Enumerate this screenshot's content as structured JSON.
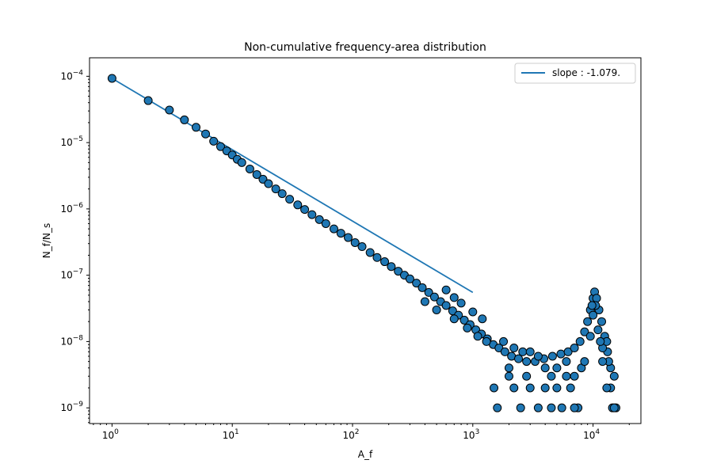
{
  "chart_data": {
    "type": "scatter",
    "title": "Non-cumulative frequency-area distribution",
    "xlabel": "A_f",
    "ylabel": "N_f/N_s",
    "xscale": "log",
    "yscale": "log",
    "xlim": [
      0.65,
      25000
    ],
    "ylim": [
      5.8e-10,
      0.00019
    ],
    "x_ticks": [
      {
        "base": "10",
        "exp": "0",
        "value": 1
      },
      {
        "base": "10",
        "exp": "1",
        "value": 10
      },
      {
        "base": "10",
        "exp": "2",
        "value": 100
      },
      {
        "base": "10",
        "exp": "3",
        "value": 1000
      },
      {
        "base": "10",
        "exp": "4",
        "value": 10000
      }
    ],
    "y_ticks": [
      {
        "base": "10",
        "exp": "−9",
        "value": 1e-09
      },
      {
        "base": "10",
        "exp": "−8",
        "value": 1e-08
      },
      {
        "base": "10",
        "exp": "−7",
        "value": 1e-07
      },
      {
        "base": "10",
        "exp": "−6",
        "value": 1e-06
      },
      {
        "base": "10",
        "exp": "−5",
        "value": 1e-05
      },
      {
        "base": "10",
        "exp": "−4",
        "value": 0.0001
      }
    ],
    "legend": {
      "position": "top-right",
      "entries": [
        {
          "label": "slope : -1.079.",
          "color": "#1f77b4"
        }
      ]
    },
    "fit_line": {
      "x": [
        1,
        1000
      ],
      "y": [
        9.3e-05,
        5.5e-08
      ],
      "slope": -1.079,
      "color": "#1f77b4"
    },
    "series": [
      {
        "marker_color": "#1f77b4",
        "marker_edge": "#000000",
        "points": [
          [
            1,
            9.3e-05
          ],
          [
            2,
            4.3e-05
          ],
          [
            3,
            3.1e-05
          ],
          [
            4,
            2.2e-05
          ],
          [
            5,
            1.7e-05
          ],
          [
            6,
            1.35e-05
          ],
          [
            7,
            1.05e-05
          ],
          [
            8,
            8.7e-06
          ],
          [
            9,
            7.5e-06
          ],
          [
            10,
            6.5e-06
          ],
          [
            11,
            5.6e-06
          ],
          [
            12,
            5e-06
          ],
          [
            14,
            4e-06
          ],
          [
            16,
            3.3e-06
          ],
          [
            18,
            2.8e-06
          ],
          [
            20,
            2.4e-06
          ],
          [
            23,
            2e-06
          ],
          [
            26,
            1.7e-06
          ],
          [
            30,
            1.4e-06
          ],
          [
            35,
            1.15e-06
          ],
          [
            40,
            9.8e-07
          ],
          [
            46,
            8.2e-07
          ],
          [
            53,
            6.9e-07
          ],
          [
            60,
            6e-07
          ],
          [
            70,
            5e-07
          ],
          [
            80,
            4.3e-07
          ],
          [
            92,
            3.7e-07
          ],
          [
            105,
            3.1e-07
          ],
          [
            120,
            2.7e-07
          ],
          [
            140,
            2.2e-07
          ],
          [
            160,
            1.85e-07
          ],
          [
            185,
            1.6e-07
          ],
          [
            210,
            1.35e-07
          ],
          [
            240,
            1.15e-07
          ],
          [
            270,
            1e-07
          ],
          [
            300,
            8.8e-08
          ],
          [
            340,
            7.6e-08
          ],
          [
            380,
            6.5e-08
          ],
          [
            430,
            5.5e-08
          ],
          [
            480,
            4.7e-08
          ],
          [
            540,
            4e-08
          ],
          [
            600,
            3.5e-08
          ],
          [
            680,
            2.9e-08
          ],
          [
            760,
            2.5e-08
          ],
          [
            850,
            2.1e-08
          ],
          [
            950,
            1.8e-08
          ],
          [
            1060,
            1.5e-08
          ],
          [
            1180,
            1.3e-08
          ],
          [
            1320,
            1.1e-08
          ],
          [
            1480,
            9e-09
          ],
          [
            1650,
            8e-09
          ],
          [
            1850,
            7e-09
          ],
          [
            2100,
            6e-09
          ],
          [
            2400,
            5.5e-09
          ],
          [
            2800,
            5e-09
          ],
          [
            3300,
            5e-09
          ],
          [
            3900,
            5.5e-09
          ],
          [
            4600,
            6e-09
          ],
          [
            5400,
            6.5e-09
          ],
          [
            6200,
            7e-09
          ],
          [
            7000,
            8e-09
          ],
          [
            7800,
            1e-08
          ],
          [
            8500,
            1.4e-08
          ],
          [
            9000,
            2e-08
          ],
          [
            9500,
            3e-08
          ],
          [
            10000,
            4.5e-08
          ],
          [
            10300,
            5.6e-08
          ],
          [
            10700,
            4.5e-08
          ],
          [
            11200,
            3e-08
          ],
          [
            11800,
            2e-08
          ],
          [
            12500,
            1.2e-08
          ],
          [
            13200,
            7e-09
          ],
          [
            14000,
            4e-09
          ],
          [
            15000,
            3e-09
          ],
          [
            600,
            6e-08
          ],
          [
            700,
            4.6e-08
          ],
          [
            800,
            3.8e-08
          ],
          [
            1000,
            2.8e-08
          ],
          [
            1200,
            2.2e-08
          ],
          [
            400,
            4e-08
          ],
          [
            500,
            3e-08
          ],
          [
            700,
            2.2e-08
          ],
          [
            900,
            1.6e-08
          ],
          [
            1100,
            1.2e-08
          ],
          [
            1300,
            1e-08
          ],
          [
            1500,
            2e-09
          ],
          [
            1600,
            1e-09
          ],
          [
            2000,
            3e-09
          ],
          [
            2000,
            4e-09
          ],
          [
            1800,
            1e-08
          ],
          [
            2200,
            8e-09
          ],
          [
            2600,
            7e-09
          ],
          [
            3000,
            7e-09
          ],
          [
            3500,
            6e-09
          ],
          [
            4000,
            4e-09
          ],
          [
            4500,
            3e-09
          ],
          [
            5000,
            2e-09
          ],
          [
            5500,
            1e-09
          ],
          [
            6000,
            3e-09
          ],
          [
            6500,
            2e-09
          ],
          [
            7000,
            3e-09
          ],
          [
            7500,
            1e-09
          ],
          [
            8000,
            4e-09
          ],
          [
            8500,
            5e-09
          ],
          [
            2500,
            1e-09
          ],
          [
            3000,
            2e-09
          ],
          [
            3500,
            1e-09
          ],
          [
            4000,
            2e-09
          ],
          [
            4500,
            1e-09
          ],
          [
            5000,
            4e-09
          ],
          [
            6000,
            5e-09
          ],
          [
            7000,
            1e-09
          ],
          [
            2200,
            2e-09
          ],
          [
            2800,
            3e-09
          ],
          [
            9500,
            1.2e-08
          ],
          [
            10000,
            2.5e-08
          ],
          [
            10500,
            3.5e-08
          ],
          [
            11000,
            1.5e-08
          ],
          [
            12000,
            8e-09
          ],
          [
            13000,
            1e-08
          ],
          [
            13500,
            5e-09
          ],
          [
            14500,
            1e-09
          ],
          [
            15500,
            1e-09
          ],
          [
            14000,
            2e-09
          ],
          [
            15000,
            1e-09
          ],
          [
            13000,
            2e-09
          ],
          [
            12000,
            5e-09
          ],
          [
            11500,
            1e-08
          ],
          [
            9800,
            3.5e-08
          ]
        ]
      }
    ]
  }
}
